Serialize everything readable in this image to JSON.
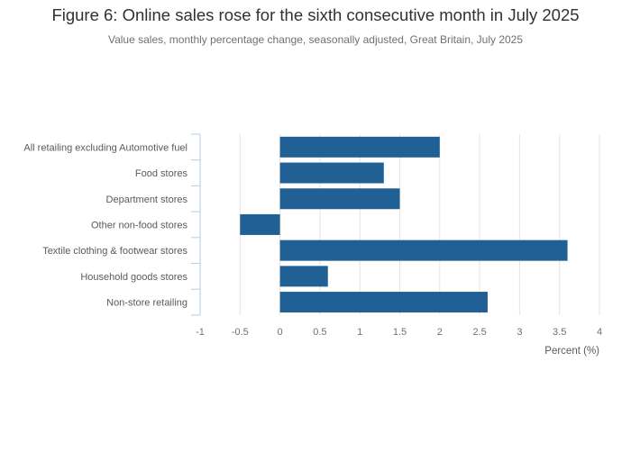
{
  "chart_data": {
    "type": "bar",
    "orientation": "horizontal",
    "title": "Figure 6: Online sales rose for the sixth consecutive month in July 2025",
    "subtitle": "Value sales, monthly percentage change, seasonally adjusted, Great Britain, July 2025",
    "categories": [
      "All retailing excluding Automotive fuel",
      "Food stores",
      "Department stores",
      "Other non-food stores",
      "Textile clothing & footwear stores",
      "Household goods stores",
      "Non-store retailing"
    ],
    "values": [
      2.0,
      1.3,
      1.5,
      -0.5,
      3.6,
      0.6,
      2.6
    ],
    "xlabel": "Percent (%)",
    "ylabel": "",
    "xlim": [
      -1,
      4
    ],
    "xticks": [
      "-1",
      "-0.5",
      "0",
      "0.5",
      "1",
      "1.5",
      "2",
      "2.5",
      "3",
      "3.5",
      "4"
    ],
    "bar_color": "#206095",
    "grid": true,
    "legend": "none"
  }
}
